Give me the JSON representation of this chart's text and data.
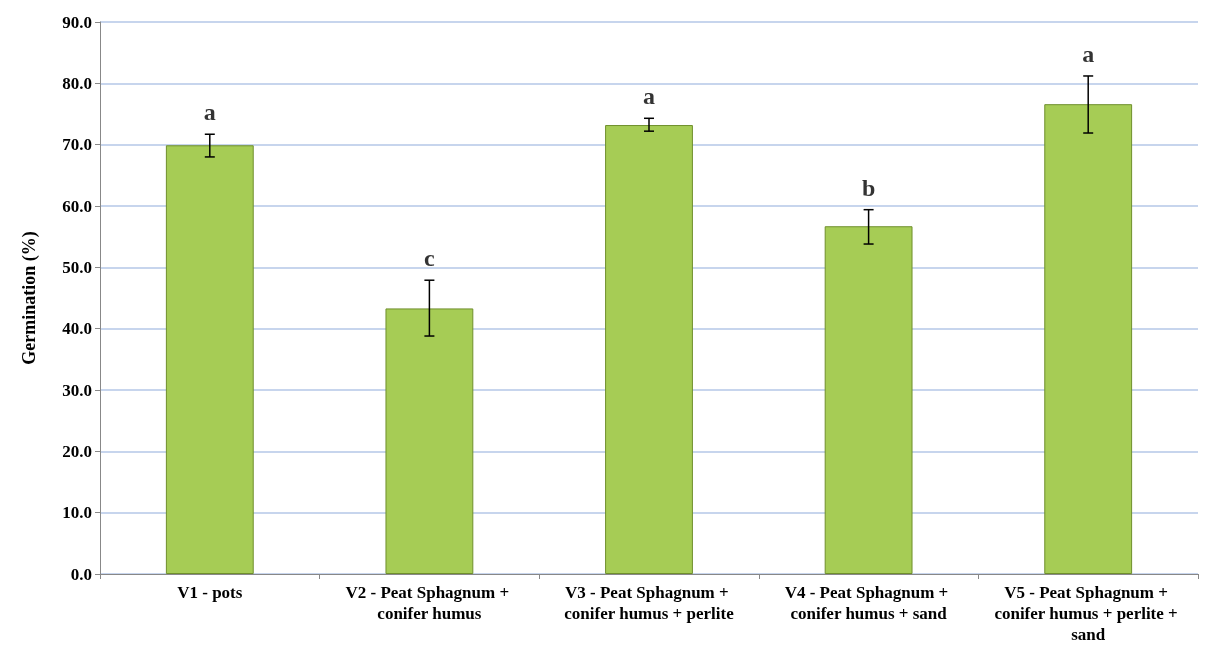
{
  "chart_data": {
    "type": "bar",
    "ylabel": "Germination (%)",
    "categories": [
      "V1 - pots",
      "V2 - Peat Sphagnum + conifer humus",
      "V3 - Peat Sphagnum + conifer humus + perlite",
      "V4 - Peat Sphagnum + conifer humus + sand",
      "V5 - Peat Sphagnum + conifer humus + perlite + sand"
    ],
    "values": [
      69.9,
      43.3,
      73.2,
      56.7,
      76.6
    ],
    "errors": [
      [
        68.0,
        71.7
      ],
      [
        38.8,
        47.9
      ],
      [
        72.2,
        74.3
      ],
      [
        53.8,
        59.4
      ],
      [
        71.9,
        81.2
      ]
    ],
    "color": "#a6cc55",
    "ylim": [
      0,
      90
    ],
    "yticks": [
      {
        "value": 0,
        "label": "0.0"
      },
      {
        "value": 10,
        "label": "10.0"
      },
      {
        "value": 20,
        "label": "20.0"
      },
      {
        "value": 30,
        "label": "30.0"
      },
      {
        "value": 40,
        "label": "40.0"
      },
      {
        "value": 50,
        "label": "50.0"
      },
      {
        "value": 60,
        "label": "60.0"
      },
      {
        "value": 70,
        "label": "70.0"
      },
      {
        "value": 80,
        "label": "80.0"
      },
      {
        "value": 90,
        "label": "90.0"
      }
    ],
    "grid": "y",
    "annotations": [
      {
        "text": "a",
        "x": "V1 - pots",
        "y": 71.7
      },
      {
        "text": "c",
        "x": "V2 - Peat Sphagnum + conifer humus",
        "y": 47.9
      },
      {
        "text": "a",
        "x": "V3 - Peat Sphagnum + conifer humus + perlite",
        "y": 74.3
      },
      {
        "text": "b",
        "x": "V4 - Peat Sphagnum + conifer humus + sand",
        "y": 59.4
      },
      {
        "text": "a",
        "x": "V5 - Peat Sphagnum + conifer humus + perlite + sand",
        "y": 81.2
      }
    ]
  }
}
